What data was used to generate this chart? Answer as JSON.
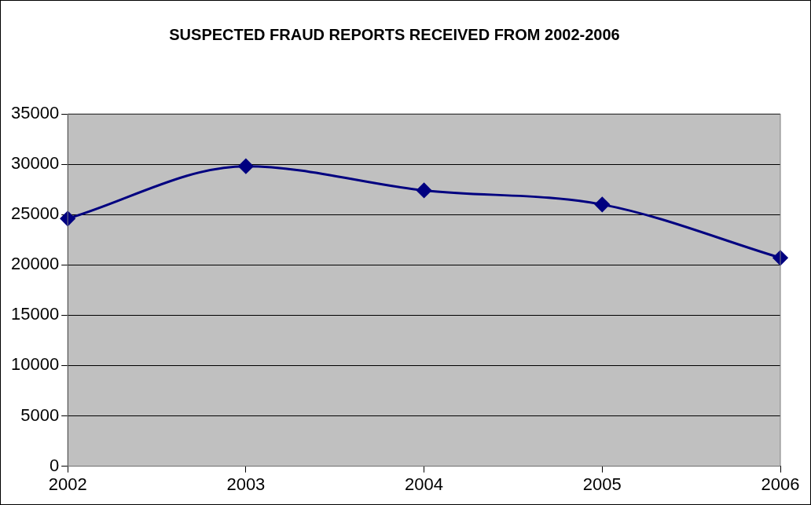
{
  "chart_data": {
    "type": "line",
    "title": "SUSPECTED FRAUD REPORTS RECEIVED FROM 2002-2006",
    "categories": [
      "2002",
      "2003",
      "2004",
      "2005",
      "2006"
    ],
    "series": [
      {
        "color": "#000080",
        "values": [
          24600,
          29800,
          27400,
          26000,
          20700
        ]
      }
    ],
    "ylim": [
      0,
      35000
    ],
    "yticks": [
      0,
      5000,
      10000,
      15000,
      20000,
      25000,
      30000,
      35000
    ],
    "grid": "y",
    "legend": false,
    "marker": "diamond",
    "line_style": "solid"
  }
}
